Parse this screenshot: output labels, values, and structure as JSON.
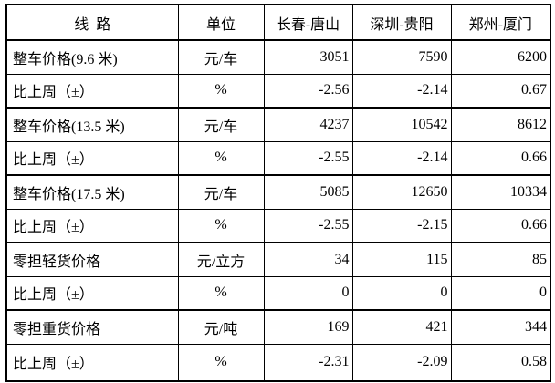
{
  "table": {
    "columns": [
      {
        "label": "线  路"
      },
      {
        "label": "单位"
      },
      {
        "label": "长春-唐山"
      },
      {
        "label": "深圳-贵阳"
      },
      {
        "label": "郑州-厦门"
      }
    ],
    "rows": [
      {
        "label": "整车价格(9.6 米)",
        "unit": "元/车",
        "values": [
          "3051",
          "7590",
          "6200"
        ]
      },
      {
        "label": "比上周（±）",
        "unit": "%",
        "values": [
          "-2.56",
          "-2.14",
          "0.67"
        ]
      },
      {
        "label": "整车价格(13.5 米)",
        "unit": "元/车",
        "values": [
          "4237",
          "10542",
          "8612"
        ]
      },
      {
        "label": "比上周（±）",
        "unit": "%",
        "values": [
          "-2.55",
          "-2.14",
          "0.66"
        ]
      },
      {
        "label": "整车价格(17.5 米)",
        "unit": "元/车",
        "values": [
          "5085",
          "12650",
          "10334"
        ]
      },
      {
        "label": "比上周（±）",
        "unit": "%",
        "values": [
          "-2.55",
          "-2.15",
          "0.66"
        ]
      },
      {
        "label": "零担轻货价格",
        "unit": "元/立方",
        "values": [
          "34",
          "115",
          "85"
        ]
      },
      {
        "label": "比上周（±）",
        "unit": "%",
        "values": [
          "0",
          "0",
          "0"
        ]
      },
      {
        "label": "零担重货价格",
        "unit": "元/吨",
        "values": [
          "169",
          "421",
          "344"
        ]
      },
      {
        "label": "比上周（±）",
        "unit": "%",
        "values": [
          "-2.31",
          "-2.09",
          "0.58"
        ]
      }
    ]
  }
}
